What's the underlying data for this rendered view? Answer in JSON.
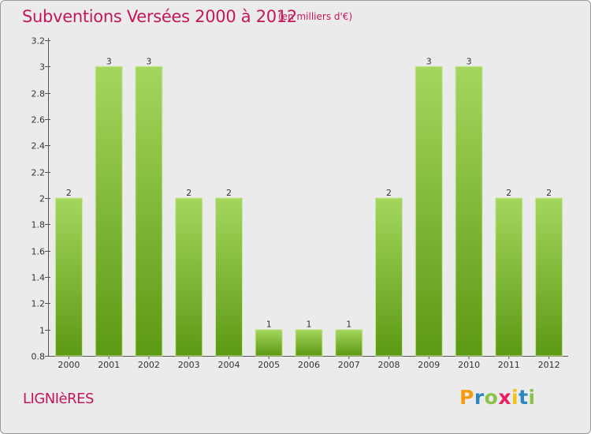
{
  "header": {
    "title": "Subventions Versées 2000 à 2012",
    "subtitle": "(en milliers d'€)"
  },
  "footer": {
    "commune": "LIGNIèRES",
    "logo_letters": [
      "P",
      "r",
      "o",
      "x",
      "i",
      "t",
      "i"
    ],
    "logo_colors": [
      "#f39c12",
      "#2e86c1",
      "#8bc34a",
      "#e91e63",
      "#f1c40f",
      "#2e86c1",
      "#8bc34a"
    ]
  },
  "chart_data": {
    "type": "bar",
    "title": "Subventions Versées 2000 à 2012",
    "categories": [
      "2000",
      "2001",
      "2002",
      "2003",
      "2004",
      "2005",
      "2006",
      "2007",
      "2008",
      "2009",
      "2010",
      "2011",
      "2012"
    ],
    "values": [
      2,
      3,
      3,
      2,
      2,
      1,
      1,
      1,
      2,
      3,
      3,
      2,
      2
    ],
    "data_labels": [
      "2",
      "3",
      "3",
      "2",
      "2",
      "1",
      "1",
      "1",
      "2",
      "3",
      "3",
      "2",
      "2"
    ],
    "xlabel": "",
    "ylabel": "",
    "ylim": [
      0.8,
      3.2
    ],
    "yticks": [
      0.8,
      1,
      1.2,
      1.4,
      1.6,
      1.8,
      2,
      2.2,
      2.4,
      2.6,
      2.8,
      3,
      3.2
    ],
    "ytick_labels": [
      "0.8",
      "1",
      "1.2",
      "1.4",
      "1.6",
      "1.8",
      "2",
      "2.2",
      "2.4",
      "2.6",
      "2.8",
      "3",
      "3.2"
    ],
    "grid": false,
    "colors": {
      "bar_top": "#a4d65e",
      "bar_bottom": "#5c9914",
      "bar_edge": "#c8e89a",
      "text": "#333333",
      "accent": "#c2185b"
    }
  }
}
